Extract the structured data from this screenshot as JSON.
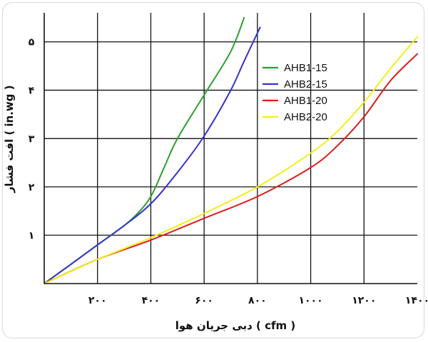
{
  "chart_data": {
    "type": "line",
    "xlabel": "دبی جریان هوا ( cfm )",
    "ylabel": "افت فشار ( in.wg )",
    "xlim": [
      0,
      1400
    ],
    "ylim": [
      0,
      5.6
    ],
    "x_ticks": [
      200,
      400,
      600,
      800,
      1000,
      1200,
      1400
    ],
    "x_tick_labels": [
      "۲۰۰",
      "۴۰۰",
      "۶۰۰",
      "۸۰۰",
      "۱۰۰۰",
      "۱۲۰۰",
      "۱۴۰۰"
    ],
    "y_ticks": [
      1,
      2,
      3,
      4,
      5
    ],
    "y_tick_labels": [
      "۱",
      "۲",
      "۳",
      "۴",
      "۵"
    ],
    "grid": true,
    "legend_position": "top-right",
    "series": [
      {
        "name": "AHB1-15",
        "color": "#2ca02c",
        "x": [
          0,
          100,
          200,
          300,
          350,
          400,
          450,
          500,
          600,
          700,
          750
        ],
        "y": [
          0,
          0.4,
          0.8,
          1.2,
          1.45,
          1.8,
          2.4,
          3.0,
          3.9,
          4.8,
          5.5
        ]
      },
      {
        "name": "AHB2-15",
        "color": "#3333cc",
        "x": [
          0,
          100,
          200,
          300,
          400,
          500,
          600,
          700,
          750,
          810
        ],
        "y": [
          0,
          0.4,
          0.8,
          1.2,
          1.65,
          2.3,
          3.05,
          4.0,
          4.6,
          5.3
        ]
      },
      {
        "name": "AHB1-20",
        "color": "#dd1c1c",
        "x": [
          0,
          200,
          400,
          600,
          800,
          1000,
          1100,
          1200,
          1300,
          1400
        ],
        "y": [
          0,
          0.5,
          0.9,
          1.35,
          1.8,
          2.4,
          2.85,
          3.45,
          4.2,
          4.75
        ]
      },
      {
        "name": "AHB2-20",
        "color": "#f2ee1a",
        "x": [
          0,
          200,
          400,
          600,
          800,
          1000,
          1100,
          1200,
          1300,
          1400
        ],
        "y": [
          0,
          0.5,
          0.95,
          1.45,
          2.0,
          2.7,
          3.15,
          3.75,
          4.45,
          5.1
        ]
      }
    ]
  }
}
